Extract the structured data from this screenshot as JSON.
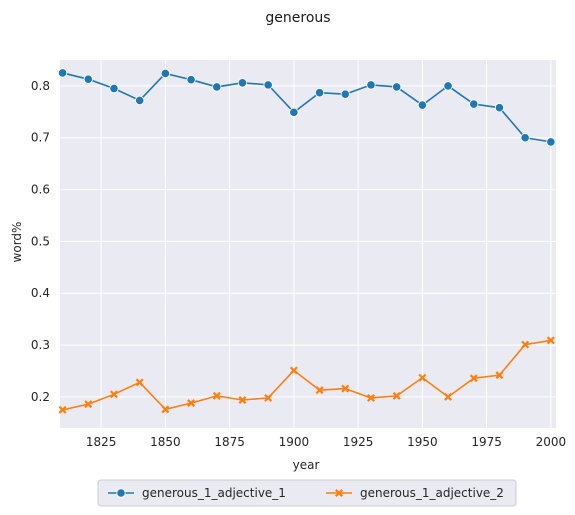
{
  "chart_data": {
    "type": "line",
    "title": "generous",
    "xlabel": "year",
    "ylabel": "word%",
    "xlim": [
      1809,
      2002
    ],
    "ylim": [
      0.14,
      0.85
    ],
    "xticks": [
      1825,
      1850,
      1875,
      1900,
      1925,
      1950,
      1975,
      2000
    ],
    "yticks": [
      0.2,
      0.3,
      0.4,
      0.5,
      0.6,
      0.7,
      0.8
    ],
    "grid": true,
    "legend_position": "bottom-center",
    "x": [
      1810,
      1820,
      1830,
      1840,
      1850,
      1860,
      1870,
      1880,
      1890,
      1900,
      1910,
      1920,
      1930,
      1940,
      1950,
      1960,
      1970,
      1980,
      1990,
      2000
    ],
    "series": [
      {
        "name": "generous_1_adjective_1",
        "color": "#1f77b4",
        "marker": "circle",
        "values": [
          0.825,
          0.813,
          0.795,
          0.772,
          0.824,
          0.812,
          0.798,
          0.806,
          0.802,
          0.749,
          0.787,
          0.784,
          0.802,
          0.798,
          0.763,
          0.8,
          0.765,
          0.758,
          0.7,
          0.692
        ]
      },
      {
        "name": "generous_1_adjective_2",
        "color": "#ff7f0e",
        "marker": "x",
        "values": [
          0.175,
          0.186,
          0.205,
          0.228,
          0.176,
          0.188,
          0.202,
          0.194,
          0.198,
          0.251,
          0.213,
          0.216,
          0.198,
          0.202,
          0.237,
          0.2,
          0.236,
          0.242,
          0.301,
          0.309
        ]
      }
    ]
  }
}
